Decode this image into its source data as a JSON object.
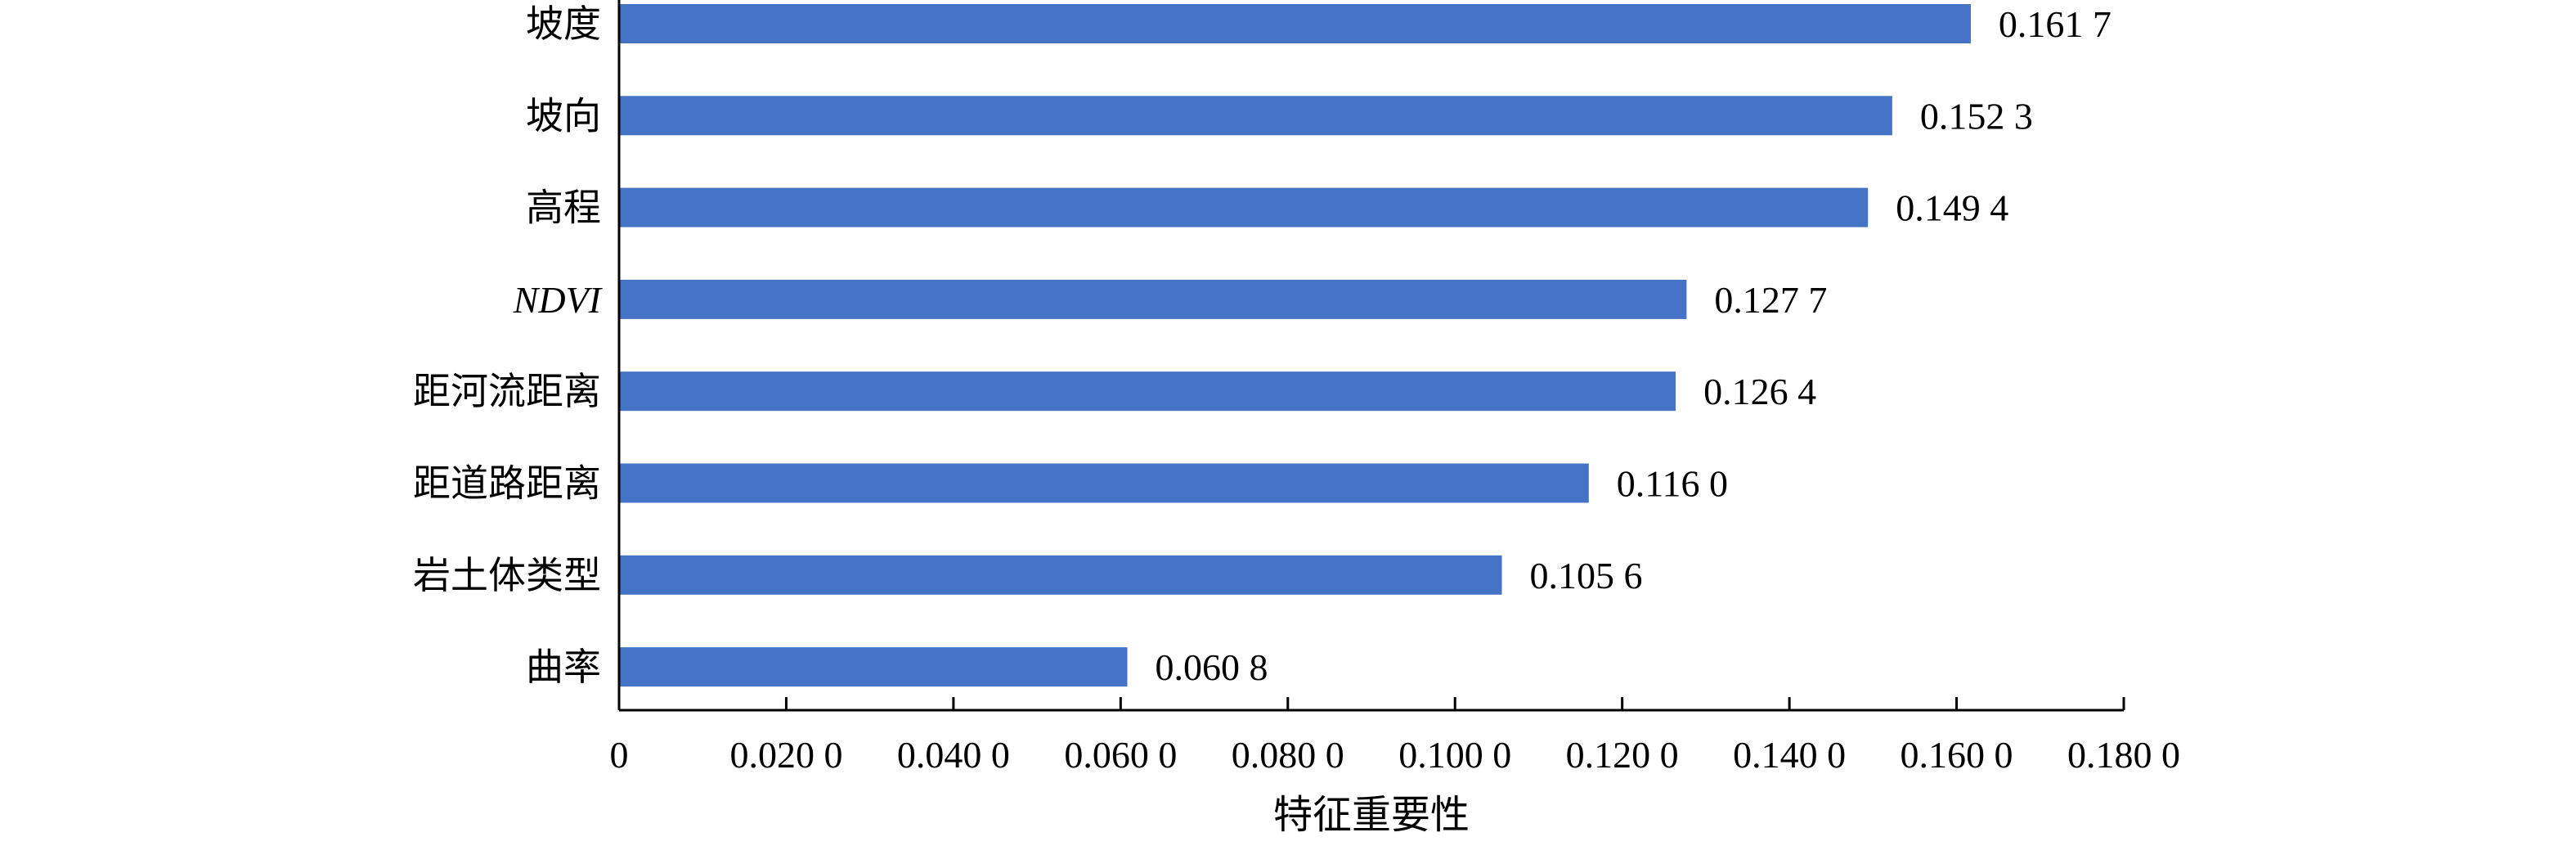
{
  "chart_data": {
    "type": "bar",
    "orientation": "horizontal",
    "categories": [
      "坡度",
      "坡向",
      "高程",
      "NDVI",
      "距河流距离",
      "距道路距离",
      "岩土体类型",
      "曲率"
    ],
    "italic_categories": [
      "NDVI"
    ],
    "values": [
      0.1617,
      0.1523,
      0.1494,
      0.1277,
      0.1264,
      0.116,
      0.1056,
      0.0608
    ],
    "value_labels": [
      "0.161 7",
      "0.152 3",
      "0.149 4",
      "0.127 7",
      "0.126 4",
      "0.116 0",
      "0.105 6",
      "0.060 8"
    ],
    "xlabel": "特征重要性",
    "ylabel": "",
    "title": "",
    "xlim": [
      0,
      0.18
    ],
    "xticks": [
      0,
      0.02,
      0.04,
      0.06,
      0.08,
      0.1,
      0.12,
      0.14,
      0.16,
      0.18
    ],
    "xtick_labels": [
      "0",
      "0.020 0",
      "0.040 0",
      "0.060 0",
      "0.080 0",
      "0.100 0",
      "0.120 0",
      "0.140 0",
      "0.160 0",
      "0.180 0"
    ],
    "bar_color": "#4472C4",
    "grid": false,
    "legend": "none"
  }
}
